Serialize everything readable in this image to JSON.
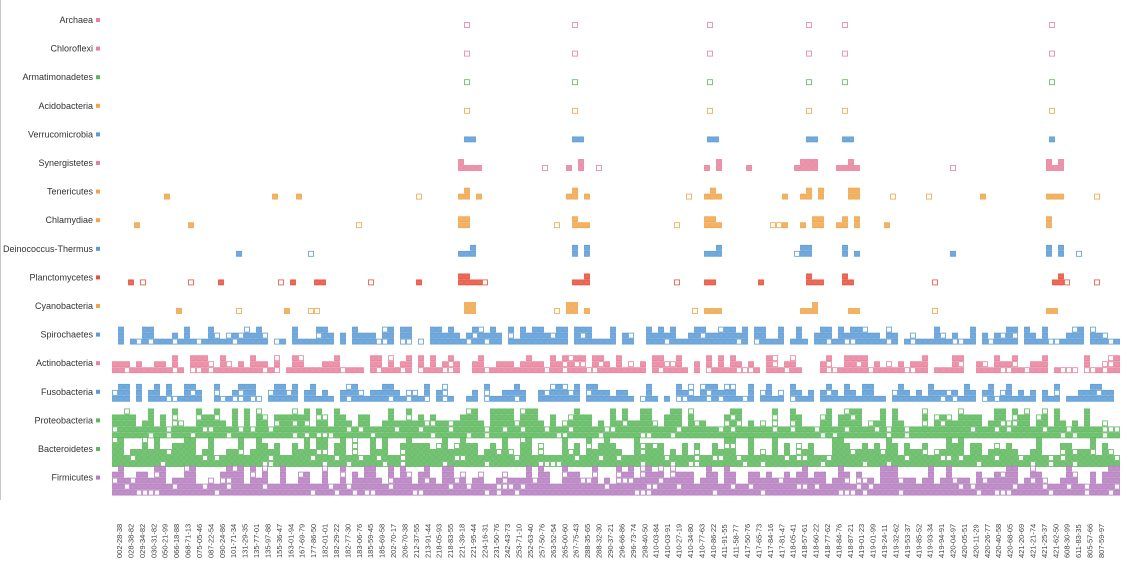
{
  "chart_data": {
    "type": "heatmap",
    "title": "",
    "xlabel": "",
    "ylabel": "",
    "categories": [
      "Archaea",
      "Chloroflexi",
      "Armatimonadetes",
      "Acidobacteria",
      "Verrucomicrobia",
      "Synergistetes",
      "Tenericutes",
      "Chlamydiae",
      "Deinococcus-Thermus",
      "Planctomycetes",
      "Cyanobacteria",
      "Spirochaetes",
      "Actinobacteria",
      "Fusobacteria",
      "Proteobacteria",
      "Bacteroidetes",
      "Firmicutes"
    ],
    "colors": {
      "Archaea": "#e8819c",
      "Chloroflexi": "#e8819c",
      "Armatimonadetes": "#5cb85c",
      "Acidobacteria": "#f0a54a",
      "Verrucomicrobia": "#5b9bd5",
      "Synergistetes": "#e8819c",
      "Tenericutes": "#f0a54a",
      "Chlamydiae": "#f0a54a",
      "Deinococcus-Thermus": "#5b9bd5",
      "Planctomycetes": "#e8503c",
      "Cyanobacteria": "#f0a54a",
      "Spirochaetes": "#5b9bd5",
      "Actinobacteria": "#e8819c",
      "Fusobacteria": "#5b9bd5",
      "Proteobacteria": "#5cb85c",
      "Bacteroidetes": "#5cb85c",
      "Firmicutes": "#b57cbf"
    },
    "x_tick_labels": [
      "002-28-38",
      "028-38-82",
      "029-34-82",
      "030-31-82",
      "050-21-99",
      "066-18-88",
      "068-71-13",
      "075-05-46",
      "087-22-54",
      "090-24-86",
      "101-71-34",
      "131-29-35",
      "135-77-01",
      "135-97-88",
      "155-36-47",
      "163-01-94",
      "167-69-79",
      "177-86-50",
      "182-01-01",
      "182-29-22",
      "182-77-30",
      "183-06-76",
      "185-59-45",
      "185-69-58",
      "202-70-17",
      "206-70-38",
      "212-37-55",
      "213-91-44",
      "218-05-93",
      "218-83-55",
      "221-39-18",
      "221-95-44",
      "224-16-31",
      "231-50-76",
      "242-43-73",
      "253-71-10",
      "252-63-40",
      "257-50-76",
      "263-52-54",
      "265-00-60",
      "267-75-43",
      "288-35-65",
      "288-32-30",
      "290-37-21",
      "296-66-86",
      "296-73-74",
      "298-40-50",
      "410-03-84",
      "410-03-91",
      "410-27-19",
      "410-34-80",
      "410-77-63",
      "410-86-22",
      "411-91-55",
      "411-58-77",
      "417-50-76",
      "417-65-73",
      "417-84-16",
      "417-81-47",
      "418-05-41",
      "418-57-61",
      "418-60-22",
      "418-77-62",
      "418-84-76",
      "418-87-21",
      "419-01-23",
      "419-01-99",
      "419-24-11",
      "419-32-62",
      "419-53-37",
      "419-85-52",
      "419-93-34",
      "419-94-91",
      "420-04-97",
      "420-05-51",
      "420-11-29",
      "420-26-77",
      "420-40-58",
      "420-68-05",
      "421-20-69",
      "421-21-74",
      "421-25-37",
      "421-62-50",
      "608-30-99",
      "611-83-35",
      "805-57-66",
      "807-59-97"
    ],
    "depth": {
      "Archaea": [
        {
          "x": 467,
          "d": 1
        },
        {
          "x": 575,
          "d": 1
        },
        {
          "x": 710,
          "d": 1
        },
        {
          "x": 809,
          "d": 1
        },
        {
          "x": 845,
          "d": 1
        },
        {
          "x": 1052,
          "d": 1
        }
      ],
      "Chloroflexi": [
        {
          "x": 467,
          "d": 1
        },
        {
          "x": 575,
          "d": 1
        },
        {
          "x": 710,
          "d": 1
        },
        {
          "x": 809,
          "d": 1
        },
        {
          "x": 845,
          "d": 1
        },
        {
          "x": 1052,
          "d": 1
        }
      ],
      "Armatimonadetes": [
        {
          "x": 467,
          "d": 1
        },
        {
          "x": 575,
          "d": 1
        },
        {
          "x": 710,
          "d": 1
        },
        {
          "x": 809,
          "d": 1
        },
        {
          "x": 845,
          "d": 1
        },
        {
          "x": 1052,
          "d": 1
        }
      ],
      "Acidobacteria": [
        {
          "x": 467,
          "d": 1
        },
        {
          "x": 575,
          "d": 1
        },
        {
          "x": 710,
          "d": 1
        },
        {
          "x": 809,
          "d": 1
        },
        {
          "x": 845,
          "d": 1
        },
        {
          "x": 1052,
          "d": 1
        }
      ],
      "Verrucomicrobia": [
        {
          "x": 467,
          "d": 1
        },
        {
          "x": 473,
          "d": 1
        },
        {
          "x": 575,
          "d": 1
        },
        {
          "x": 581,
          "d": 1
        },
        {
          "x": 710,
          "d": 1
        },
        {
          "x": 716,
          "d": 1
        },
        {
          "x": 809,
          "d": 1
        },
        {
          "x": 815,
          "d": 1
        },
        {
          "x": 845,
          "d": 1
        },
        {
          "x": 851,
          "d": 1
        },
        {
          "x": 1052,
          "d": 1
        }
      ]
    },
    "row_patterns": {
      "Synergistetes": "sparse",
      "Tenericutes": "sparse",
      "Chlamydiae": "clustered",
      "Deinococcus-Thermus": "clustered",
      "Planctomycetes": "sparse",
      "Cyanobacteria": "sparse",
      "Spirochaetes": "dense",
      "Actinobacteria": "dense",
      "Fusobacteria": "dense",
      "Proteobacteria": "very-dense",
      "Bacteroidetes": "very-dense",
      "Firmicutes": "very-dense"
    },
    "grid": false,
    "legend": "none"
  }
}
